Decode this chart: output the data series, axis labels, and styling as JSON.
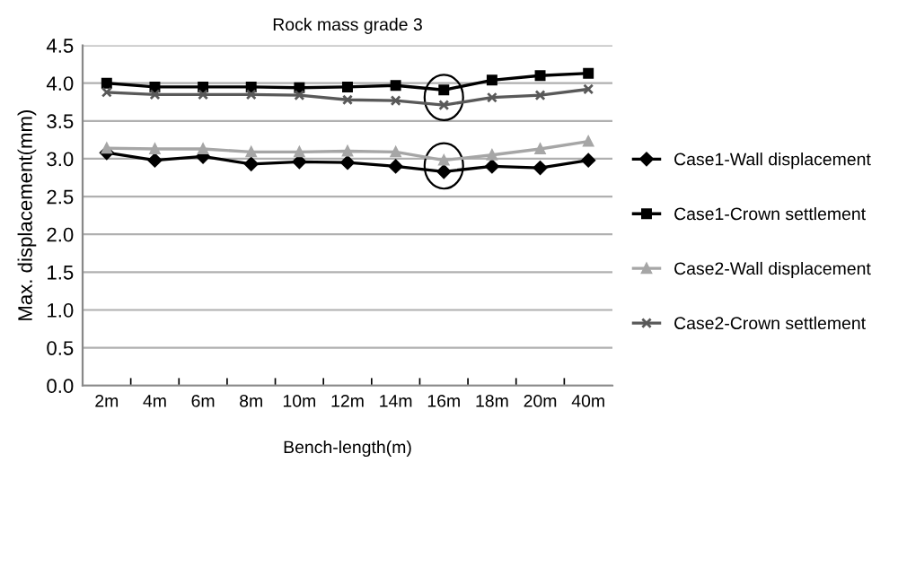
{
  "chart_data": {
    "type": "line",
    "title": "Rock mass grade 3",
    "xlabel": "Bench-length(m)",
    "ylabel": "Max. displacement(mm)",
    "categories": [
      "2m",
      "4m",
      "6m",
      "8m",
      "10m",
      "12m",
      "14m",
      "16m",
      "18m",
      "20m",
      "40m"
    ],
    "series": [
      {
        "name": "Case1-Wall displacement",
        "color": "#000000",
        "marker": "diamond",
        "values": [
          3.08,
          2.98,
          3.03,
          2.93,
          2.96,
          2.95,
          2.9,
          2.83,
          2.9,
          2.88,
          2.98
        ]
      },
      {
        "name": "Case1-Crown settlement",
        "color": "#000000",
        "marker": "square",
        "values": [
          4.0,
          3.95,
          3.95,
          3.95,
          3.94,
          3.95,
          3.97,
          3.91,
          4.04,
          4.1,
          4.13
        ]
      },
      {
        "name": "Case2-Wall displacement",
        "color": "#a6a6a6",
        "marker": "triangle",
        "values": [
          3.14,
          3.13,
          3.13,
          3.09,
          3.09,
          3.1,
          3.09,
          2.98,
          3.05,
          3.13,
          3.23
        ]
      },
      {
        "name": "Case2-Crown settlement",
        "color": "#595959",
        "marker": "cross",
        "values": [
          3.88,
          3.85,
          3.85,
          3.85,
          3.84,
          3.78,
          3.77,
          3.71,
          3.81,
          3.84,
          3.92
        ]
      }
    ],
    "ylim": [
      0,
      4.5
    ],
    "yticks": [
      {
        "value": 0,
        "label": "0.0"
      },
      {
        "value": 0.5,
        "label": "0.5"
      },
      {
        "value": 1,
        "label": "1.0"
      },
      {
        "value": 1.5,
        "label": "1.5"
      },
      {
        "value": 2,
        "label": "2.0"
      },
      {
        "value": 2.5,
        "label": "2.5"
      },
      {
        "value": 3,
        "label": "3.0"
      },
      {
        "value": 3.5,
        "label": "3.5"
      },
      {
        "value": 4,
        "label": "4.0"
      },
      {
        "value": 4.5,
        "label": "4.5"
      }
    ],
    "grid": "y",
    "legend": "right"
  }
}
